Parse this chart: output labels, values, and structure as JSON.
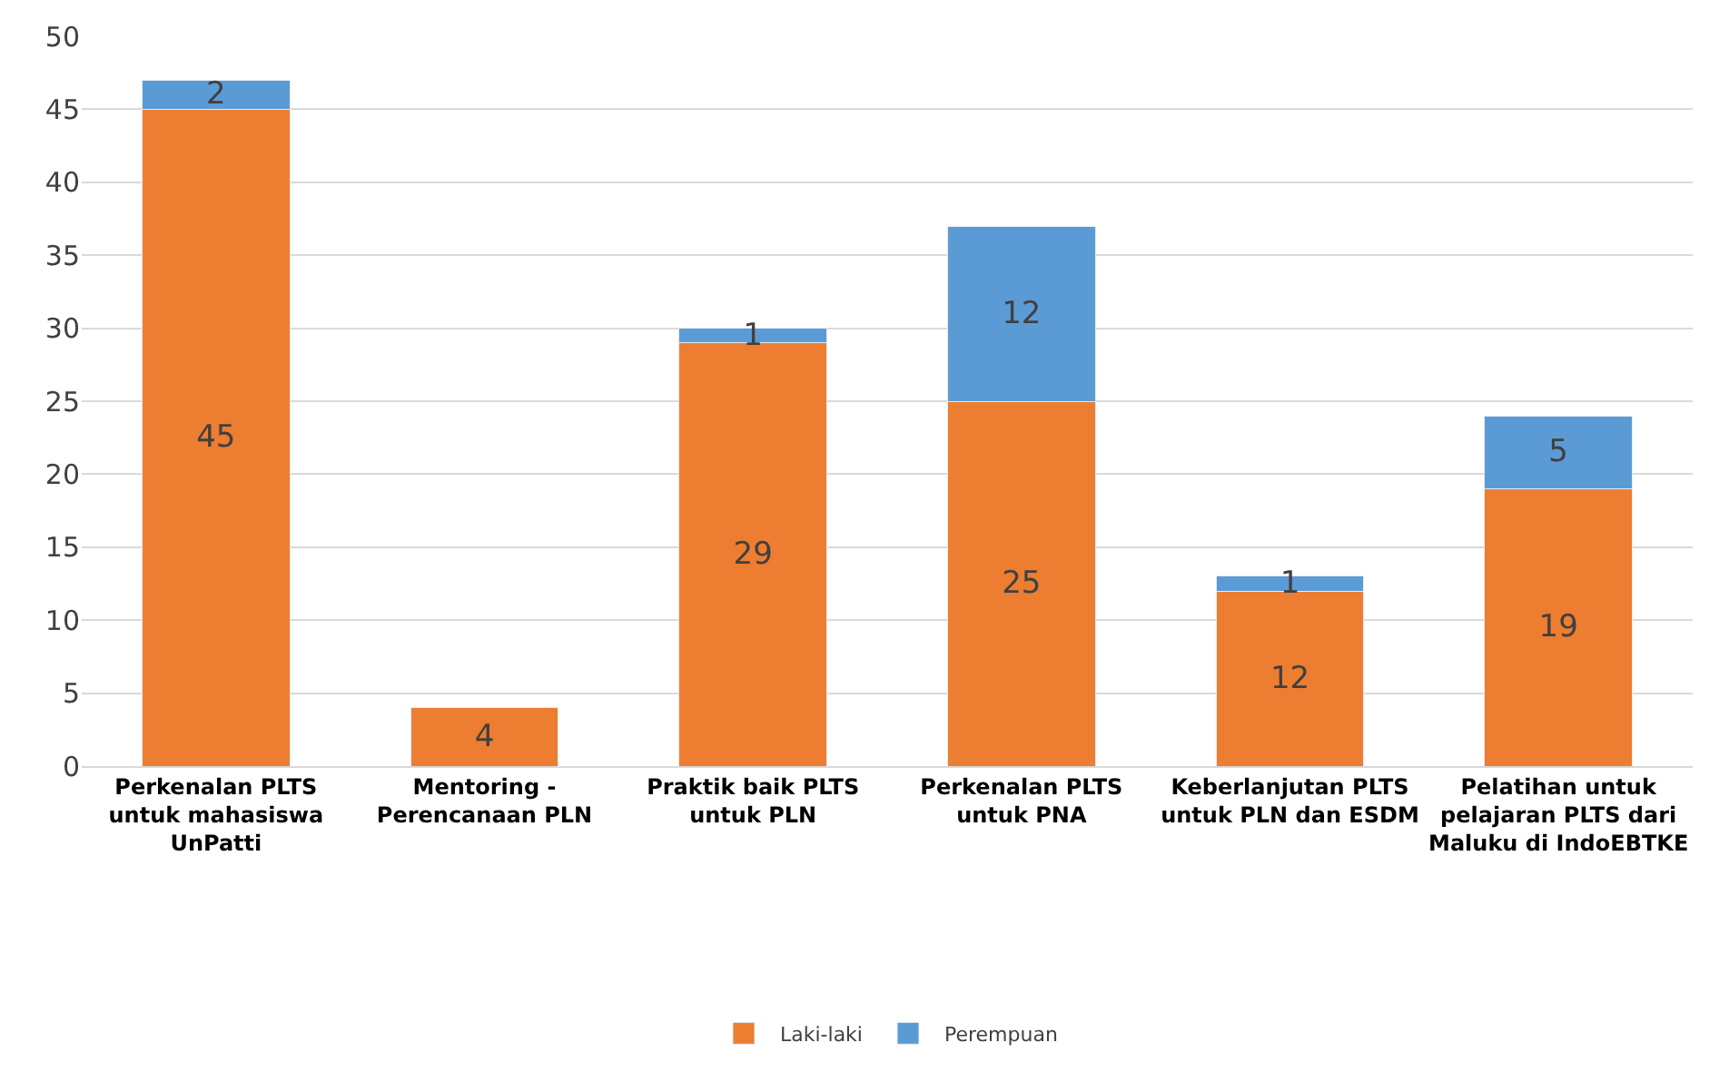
{
  "chart_data": {
    "type": "bar",
    "stacked": true,
    "categories": [
      "Perkenalan PLTS untuk mahasiswa UnPatti",
      "Mentoring - Perencanaan PLN",
      "Praktik baik PLTS untuk PLN",
      "Perkenalan PLTS untuk PNA",
      "Keberlanjutan PLTS untuk PLN dan ESDM",
      "Pelatihan untuk pelajaran PLTS dari Maluku di IndoEBTKE"
    ],
    "series": [
      {
        "name": "Laki-laki",
        "color": "#ed7d31",
        "values": [
          45,
          4,
          29,
          25,
          12,
          19
        ]
      },
      {
        "name": "Perempuan",
        "color": "#5b9bd5",
        "values": [
          2,
          null,
          1,
          12,
          1,
          5
        ]
      }
    ],
    "ylim": [
      0,
      50
    ],
    "yticks": [
      0,
      5,
      10,
      15,
      20,
      25,
      30,
      35,
      40,
      45,
      50
    ],
    "grid": "y",
    "legend": "bottom",
    "data_labels": true
  }
}
